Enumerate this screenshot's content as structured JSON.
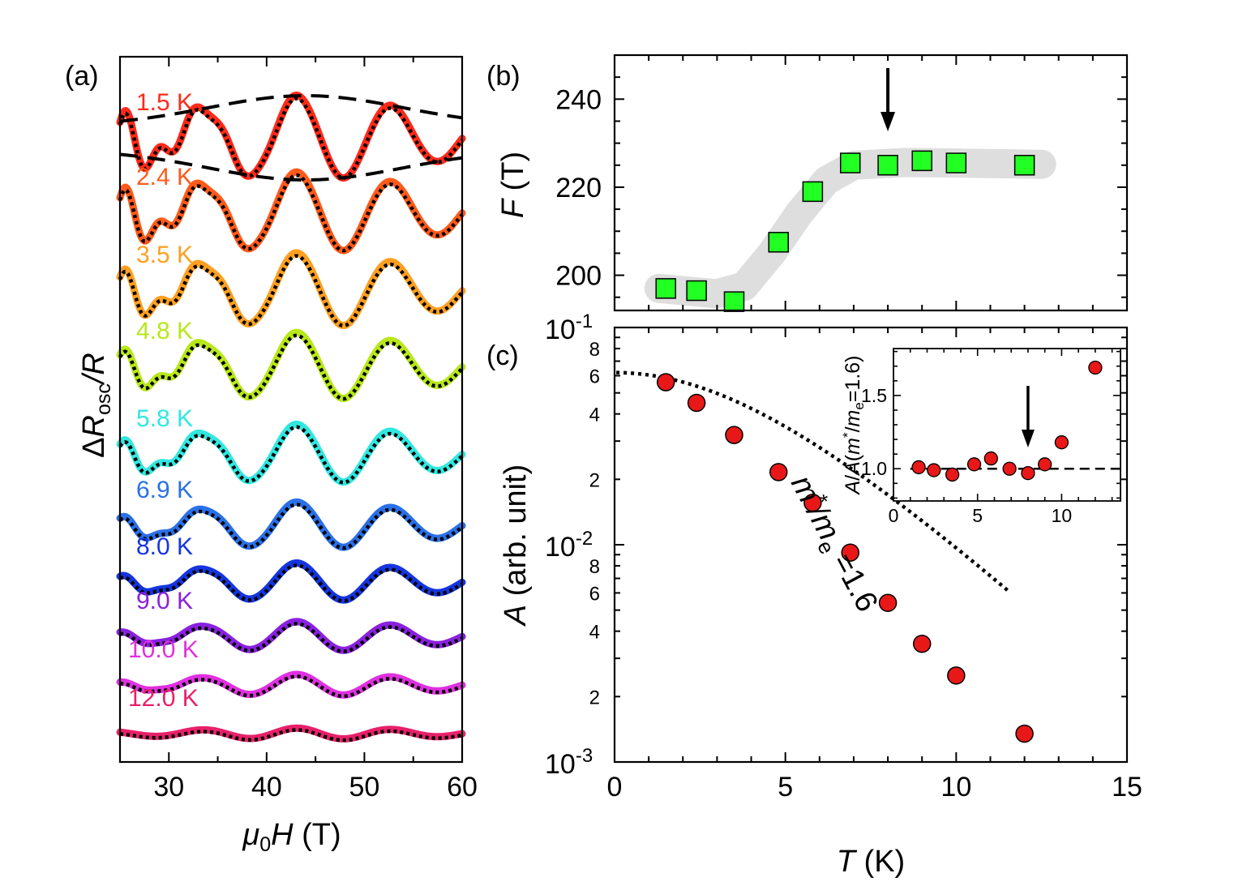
{
  "chart_data": [
    {
      "panel": "(a)",
      "type": "line",
      "xlabel_main": "μ",
      "xlabel_sub": "0",
      "xlabel_tail": "H (T)",
      "ylabel_delta": "Δ",
      "ylabel_r": "R",
      "ylabel_sub": "osc",
      "ylabel_tail": "/R",
      "xlim": [
        25,
        60
      ],
      "xticks": [
        30,
        40,
        50,
        60
      ],
      "fit_style": "black dotted",
      "envelope_style": "black dashed (1.5 K trace)",
      "series": [
        {
          "label": "1.5 K",
          "color": "#ff2a1a",
          "amplitude": 1.0,
          "hf": 0.6
        },
        {
          "label": "2.4 K",
          "color": "#ff5a1a",
          "amplitude": 0.95,
          "hf": 0.55
        },
        {
          "label": "3.5 K",
          "color": "#ffa020",
          "amplitude": 0.88,
          "hf": 0.45
        },
        {
          "label": "4.8 K",
          "color": "#b8e818",
          "amplitude": 0.8,
          "hf": 0.35
        },
        {
          "label": "5.8 K",
          "color": "#30e8e0",
          "amplitude": 0.7,
          "hf": 0.28
        },
        {
          "label": "6.9 K",
          "color": "#2a70e8",
          "amplitude": 0.55,
          "hf": 0.15
        },
        {
          "label": "8.0 K",
          "color": "#1535e0",
          "amplitude": 0.45,
          "hf": 0.1
        },
        {
          "label": "9.0 K",
          "color": "#8a20e0",
          "amplitude": 0.35,
          "hf": 0.05
        },
        {
          "label": "10.0 K",
          "color": "#e030e0",
          "amplitude": 0.25,
          "hf": 0.03
        },
        {
          "label": "12.0 K",
          "color": "#e8206a",
          "amplitude": 0.13,
          "hf": 0.0
        }
      ]
    },
    {
      "panel": "(b)",
      "type": "scatter",
      "ylabel_main": "F",
      "ylabel_tail": " (T)",
      "ylim": [
        192,
        250
      ],
      "yticks": [
        200,
        220,
        240
      ],
      "xlim": [
        0,
        15
      ],
      "marker": "green square",
      "marker_color": "#22ff22",
      "arrow_at_T": 8.0,
      "x": [
        1.5,
        2.4,
        3.5,
        4.8,
        5.8,
        6.9,
        8.0,
        9.0,
        10.0,
        12.0
      ],
      "y": [
        197,
        196.5,
        194,
        207.5,
        219,
        225.5,
        225,
        226,
        225.5,
        225
      ]
    },
    {
      "panel": "(c)",
      "type": "scatter",
      "scale": "log-y",
      "xlabel_main": "T",
      "xlabel_tail": " (K)",
      "ylabel_main": "A",
      "ylabel_tail": " (arb. unit)",
      "xlim": [
        0,
        15
      ],
      "ylim": [
        0.001,
        0.1
      ],
      "xticks": [
        0,
        5,
        10,
        15
      ],
      "ytick_labels": {
        "top_base": "10",
        "top_exp": "-1",
        "mid_base": "10",
        "mid_exp": "-2",
        "bot_base": "10",
        "bot_exp": "-3",
        "b_overlap": "-1"
      },
      "minor_labels": [
        "8",
        "6",
        "4",
        "2",
        "8",
        "6",
        "4",
        "2"
      ],
      "marker_color": "#e81818",
      "x": [
        1.5,
        2.4,
        3.5,
        4.8,
        5.8,
        6.9,
        8.0,
        9.0,
        10.0,
        12.0
      ],
      "y": [
        0.056,
        0.045,
        0.032,
        0.0216,
        0.0156,
        0.0092,
        0.0054,
        0.0035,
        0.0025,
        0.00135
      ],
      "fit_label_m": "m",
      "fit_label_star": "*",
      "fit_label_slash": "/m",
      "fit_label_sub": "e",
      "fit_label_value": " =1.6",
      "fit_mass": 1.6,
      "fit_A0": 0.062
    },
    {
      "panel": "(c) inset",
      "type": "scatter",
      "ylabel": "A/A(m*/me=1.6)",
      "ylabel_parts": {
        "a": "A/A(",
        "m": "m",
        "star": "*",
        "slash": "/",
        "me": "m",
        "sub": "e",
        "tail": "=1.6)"
      },
      "xlim": [
        0,
        13.5
      ],
      "ylim": [
        0.78,
        1.82
      ],
      "xticks": [
        0,
        5,
        10
      ],
      "yticks": [
        1.0,
        1.5
      ],
      "ytick_labels": [
        "1.0",
        "1.5"
      ],
      "reference_line": 1.0,
      "arrow_at_T": 8.0,
      "x": [
        1.5,
        2.4,
        3.5,
        4.8,
        5.8,
        6.9,
        8.0,
        9.0,
        10.0,
        12.0
      ],
      "y": [
        1.01,
        0.99,
        0.96,
        1.03,
        1.07,
        1.0,
        0.97,
        1.03,
        1.18,
        1.69
      ]
    }
  ]
}
